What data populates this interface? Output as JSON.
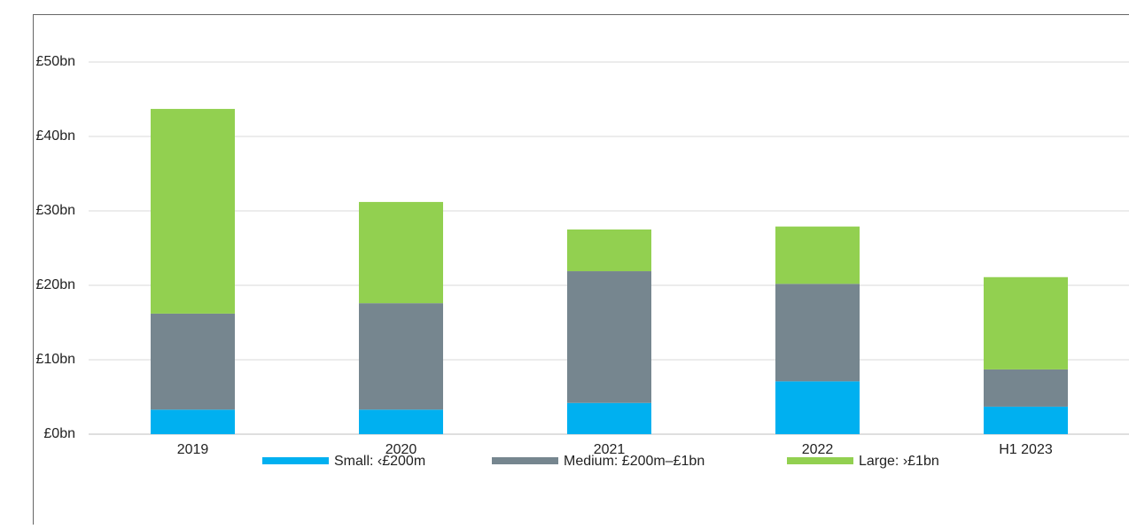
{
  "chart_data": {
    "type": "stacked-bar",
    "categories": [
      "2019",
      "2020",
      "2021",
      "2022",
      "H1 2023"
    ],
    "series": [
      {
        "name": "Small: ‹£200m",
        "color": "#00b0f0",
        "values": [
          3.3,
          3.3,
          4.2,
          7.1,
          3.7
        ]
      },
      {
        "name": "Medium: £200m–£1bn",
        "color": "#76868f",
        "values": [
          12.9,
          14.3,
          17.7,
          13.1,
          5.0
        ]
      },
      {
        "name": "Large: ›£1bn",
        "color": "#92d050",
        "values": [
          27.5,
          13.6,
          5.6,
          7.7,
          12.4
        ]
      }
    ],
    "ylim": [
      0,
      50
    ],
    "yticks": [
      {
        "value": 0,
        "label": "£0bn"
      },
      {
        "value": 10,
        "label": "£10bn"
      },
      {
        "value": 20,
        "label": "£20bn"
      },
      {
        "value": 30,
        "label": "£30bn"
      },
      {
        "value": 40,
        "label": "£40bn"
      },
      {
        "value": 50,
        "label": "£50bn"
      }
    ],
    "grid": true,
    "legend": "bottom"
  }
}
